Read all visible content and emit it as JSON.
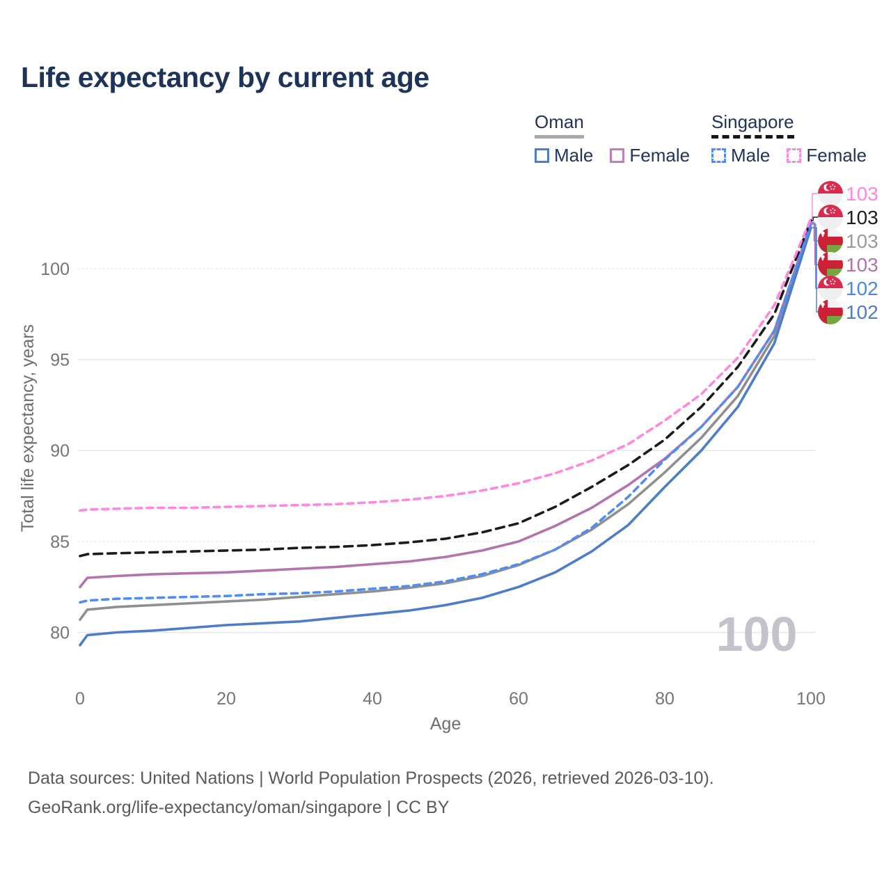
{
  "title": "Life expectancy by current age",
  "legend": {
    "oman": {
      "title": "Oman",
      "underline": {
        "color": "#a9a9a9",
        "dash": false
      },
      "items": [
        {
          "label": "Male",
          "color": "#4d7cc9",
          "dash": false
        },
        {
          "label": "Female",
          "color": "#c07fba",
          "dash": false
        }
      ]
    },
    "singapore": {
      "title": "Singapore",
      "underline": {
        "color": "#161616",
        "dash": true
      },
      "items": [
        {
          "label": "Male",
          "color": "#4f8df2",
          "dash": true
        },
        {
          "label": "Female",
          "color": "#ff87de",
          "dash": true
        }
      ]
    }
  },
  "watermark": "100",
  "footer": {
    "line1": "Data sources: United Nations | World Population Prospects (2026, retrieved 2026-03-10).",
    "line2": "GeoRank.org/life-expectancy/oman/singapore | CC BY"
  },
  "chart_data": {
    "type": "line",
    "title": "Life expectancy by current age",
    "xlabel": "Age",
    "ylabel": "Total life expectancy, years",
    "xlim": [
      0,
      100
    ],
    "ylim": [
      78.8,
      103.6
    ],
    "grid": true,
    "x_ticks": [
      0,
      20,
      40,
      60,
      80,
      100
    ],
    "y_ticks": [
      {
        "value": 100,
        "style": "dotted"
      },
      {
        "value": 95,
        "style": "solid"
      },
      {
        "value": 90,
        "style": "solid"
      },
      {
        "value": 85,
        "style": "dotted"
      },
      {
        "value": 80,
        "style": "solid"
      }
    ],
    "x": [
      0,
      1,
      5,
      10,
      15,
      20,
      25,
      30,
      35,
      40,
      45,
      50,
      55,
      60,
      65,
      70,
      75,
      80,
      85,
      90,
      95,
      100
    ],
    "series": [
      {
        "name": "Oman",
        "color": "#8f8f8f",
        "dash": null,
        "values": [
          80.7,
          81.25,
          81.4,
          81.5,
          81.6,
          81.7,
          81.8,
          81.95,
          82.1,
          82.25,
          82.45,
          82.7,
          83.1,
          83.7,
          84.55,
          85.65,
          87.05,
          88.8,
          90.7,
          93.0,
          96.3,
          102.55
        ]
      },
      {
        "name": "Oman Female",
        "color": "#b273ae",
        "dash": null,
        "values": [
          82.5,
          83.0,
          83.1,
          83.2,
          83.25,
          83.3,
          83.4,
          83.5,
          83.6,
          83.75,
          83.9,
          84.15,
          84.5,
          85.0,
          85.85,
          86.85,
          88.1,
          89.55,
          91.3,
          93.5,
          96.6,
          102.5
        ]
      },
      {
        "name": "Oman Male",
        "color": "#4d7cc9",
        "dash": null,
        "values": [
          79.3,
          79.85,
          80.0,
          80.1,
          80.25,
          80.4,
          80.5,
          80.6,
          80.8,
          81.0,
          81.2,
          81.5,
          81.9,
          82.5,
          83.3,
          84.45,
          85.9,
          88.0,
          90.0,
          92.4,
          95.9,
          102.25
        ]
      },
      {
        "name": "Singapore",
        "color": "#1b1b1b",
        "dash": "12 8",
        "values": [
          84.2,
          84.3,
          84.35,
          84.4,
          84.45,
          84.5,
          84.55,
          84.65,
          84.7,
          84.8,
          84.95,
          85.15,
          85.5,
          86.0,
          86.9,
          88.0,
          89.2,
          90.6,
          92.4,
          94.6,
          97.5,
          102.65
        ]
      },
      {
        "name": "Singapore Male",
        "color": "#4f8df2",
        "dash": "9 7",
        "values": [
          81.65,
          81.75,
          81.85,
          81.9,
          81.95,
          82.0,
          82.1,
          82.15,
          82.25,
          82.4,
          82.55,
          82.8,
          83.2,
          83.75,
          84.55,
          85.75,
          87.45,
          89.5,
          91.3,
          93.5,
          96.6,
          102.45
        ]
      },
      {
        "name": "Singapore Female",
        "color": "#ff87de",
        "dash": "9 7",
        "values": [
          86.7,
          86.75,
          86.8,
          86.85,
          86.85,
          86.9,
          86.95,
          87.0,
          87.05,
          87.15,
          87.3,
          87.5,
          87.8,
          88.2,
          88.75,
          89.45,
          90.35,
          91.65,
          93.1,
          95.1,
          98.0,
          102.75
        ]
      }
    ],
    "right_labels": [
      {
        "series": "Singapore Female",
        "flag": "sg",
        "text": "103",
        "color": "#ff87de"
      },
      {
        "series": "Singapore",
        "flag": "sg",
        "text": "103",
        "color": "#1c1c1c"
      },
      {
        "series": "Oman",
        "flag": "om",
        "text": "103",
        "color": "#9b9b9b"
      },
      {
        "series": "Oman Female",
        "flag": "om",
        "text": "103",
        "color": "#b273ae"
      },
      {
        "series": "Singapore Male",
        "flag": "sg",
        "text": "102",
        "color": "#4b86e8"
      },
      {
        "series": "Oman Male",
        "flag": "om",
        "text": "102",
        "color": "#4d7cc9"
      }
    ],
    "legend_position": "top-right"
  }
}
